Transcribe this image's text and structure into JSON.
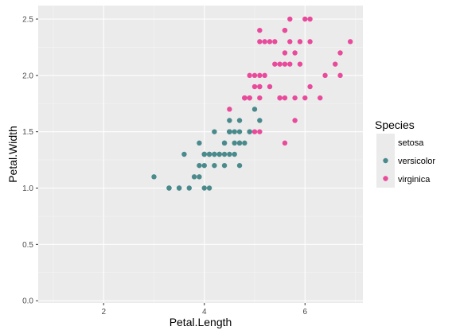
{
  "chart_data": {
    "type": "scatter",
    "xlabel": "Petal.Length",
    "ylabel": "Petal.Width",
    "xlim": [
      0.7,
      7.15
    ],
    "ylim": [
      -0.02,
      2.62
    ],
    "x_ticks": [
      2,
      4,
      6
    ],
    "x_tick_labels": [
      "2",
      "4",
      "6"
    ],
    "y_ticks": [
      0,
      0.5,
      1.0,
      1.5,
      2.0,
      2.5
    ],
    "y_tick_labels": [
      "0.0",
      "0.5",
      "1.0",
      "1.5",
      "2.0",
      "2.5"
    ],
    "grid": true,
    "legend_position": "right",
    "legend_title": "Species",
    "series": [
      {
        "name": "setosa",
        "color": "#ebebeb",
        "points": []
      },
      {
        "name": "versicolor",
        "color": "#4a8a8c",
        "points": [
          [
            4.7,
            1.4
          ],
          [
            4.5,
            1.5
          ],
          [
            4.9,
            1.5
          ],
          [
            4.0,
            1.3
          ],
          [
            4.6,
            1.5
          ],
          [
            4.5,
            1.3
          ],
          [
            4.7,
            1.6
          ],
          [
            3.3,
            1.0
          ],
          [
            4.6,
            1.3
          ],
          [
            3.9,
            1.4
          ],
          [
            3.5,
            1.0
          ],
          [
            4.2,
            1.5
          ],
          [
            4.0,
            1.0
          ],
          [
            4.7,
            1.4
          ],
          [
            3.6,
            1.3
          ],
          [
            4.4,
            1.4
          ],
          [
            4.5,
            1.5
          ],
          [
            4.1,
            1.0
          ],
          [
            4.5,
            1.5
          ],
          [
            3.9,
            1.1
          ],
          [
            4.8,
            1.8
          ],
          [
            4.0,
            1.3
          ],
          [
            4.9,
            1.5
          ],
          [
            4.7,
            1.2
          ],
          [
            4.3,
            1.3
          ],
          [
            4.4,
            1.4
          ],
          [
            4.8,
            1.4
          ],
          [
            5.0,
            1.7
          ],
          [
            4.5,
            1.5
          ],
          [
            3.5,
            1.0
          ],
          [
            3.8,
            1.1
          ],
          [
            3.7,
            1.0
          ],
          [
            3.9,
            1.2
          ],
          [
            5.1,
            1.6
          ],
          [
            4.5,
            1.5
          ],
          [
            4.5,
            1.6
          ],
          [
            4.7,
            1.5
          ],
          [
            4.4,
            1.3
          ],
          [
            4.1,
            1.3
          ],
          [
            4.0,
            1.3
          ],
          [
            4.4,
            1.2
          ],
          [
            4.6,
            1.4
          ],
          [
            4.0,
            1.2
          ],
          [
            3.3,
            1.0
          ],
          [
            4.2,
            1.3
          ],
          [
            4.2,
            1.2
          ],
          [
            4.2,
            1.3
          ],
          [
            4.3,
            1.3
          ],
          [
            3.0,
            1.1
          ],
          [
            4.1,
            1.3
          ]
        ]
      },
      {
        "name": "virginica",
        "color": "#e84b9b",
        "points": [
          [
            6.0,
            2.5
          ],
          [
            5.1,
            1.9
          ],
          [
            5.9,
            2.1
          ],
          [
            5.6,
            1.8
          ],
          [
            5.8,
            2.2
          ],
          [
            6.6,
            2.1
          ],
          [
            4.5,
            1.7
          ],
          [
            6.3,
            1.8
          ],
          [
            5.8,
            1.8
          ],
          [
            6.1,
            2.5
          ],
          [
            5.1,
            2.0
          ],
          [
            5.3,
            1.9
          ],
          [
            5.5,
            2.1
          ],
          [
            5.0,
            2.0
          ],
          [
            5.1,
            2.4
          ],
          [
            5.3,
            2.3
          ],
          [
            5.5,
            1.8
          ],
          [
            6.7,
            2.2
          ],
          [
            6.9,
            2.3
          ],
          [
            5.0,
            1.5
          ],
          [
            5.7,
            2.3
          ],
          [
            4.9,
            2.0
          ],
          [
            6.7,
            2.0
          ],
          [
            4.9,
            1.8
          ],
          [
            5.7,
            2.1
          ],
          [
            6.0,
            1.8
          ],
          [
            4.8,
            1.8
          ],
          [
            4.9,
            1.8
          ],
          [
            5.6,
            2.1
          ],
          [
            5.8,
            1.6
          ],
          [
            6.1,
            1.9
          ],
          [
            6.4,
            2.0
          ],
          [
            5.6,
            2.2
          ],
          [
            5.1,
            1.5
          ],
          [
            5.6,
            1.4
          ],
          [
            6.1,
            2.3
          ],
          [
            5.6,
            2.4
          ],
          [
            5.5,
            1.8
          ],
          [
            4.8,
            1.8
          ],
          [
            5.4,
            2.1
          ],
          [
            5.6,
            2.4
          ],
          [
            5.1,
            2.3
          ],
          [
            5.1,
            1.9
          ],
          [
            5.9,
            2.3
          ],
          [
            5.7,
            2.5
          ],
          [
            5.2,
            2.3
          ],
          [
            5.0,
            1.9
          ],
          [
            5.2,
            2.0
          ],
          [
            5.4,
            2.3
          ],
          [
            5.1,
            1.8
          ]
        ]
      }
    ]
  }
}
